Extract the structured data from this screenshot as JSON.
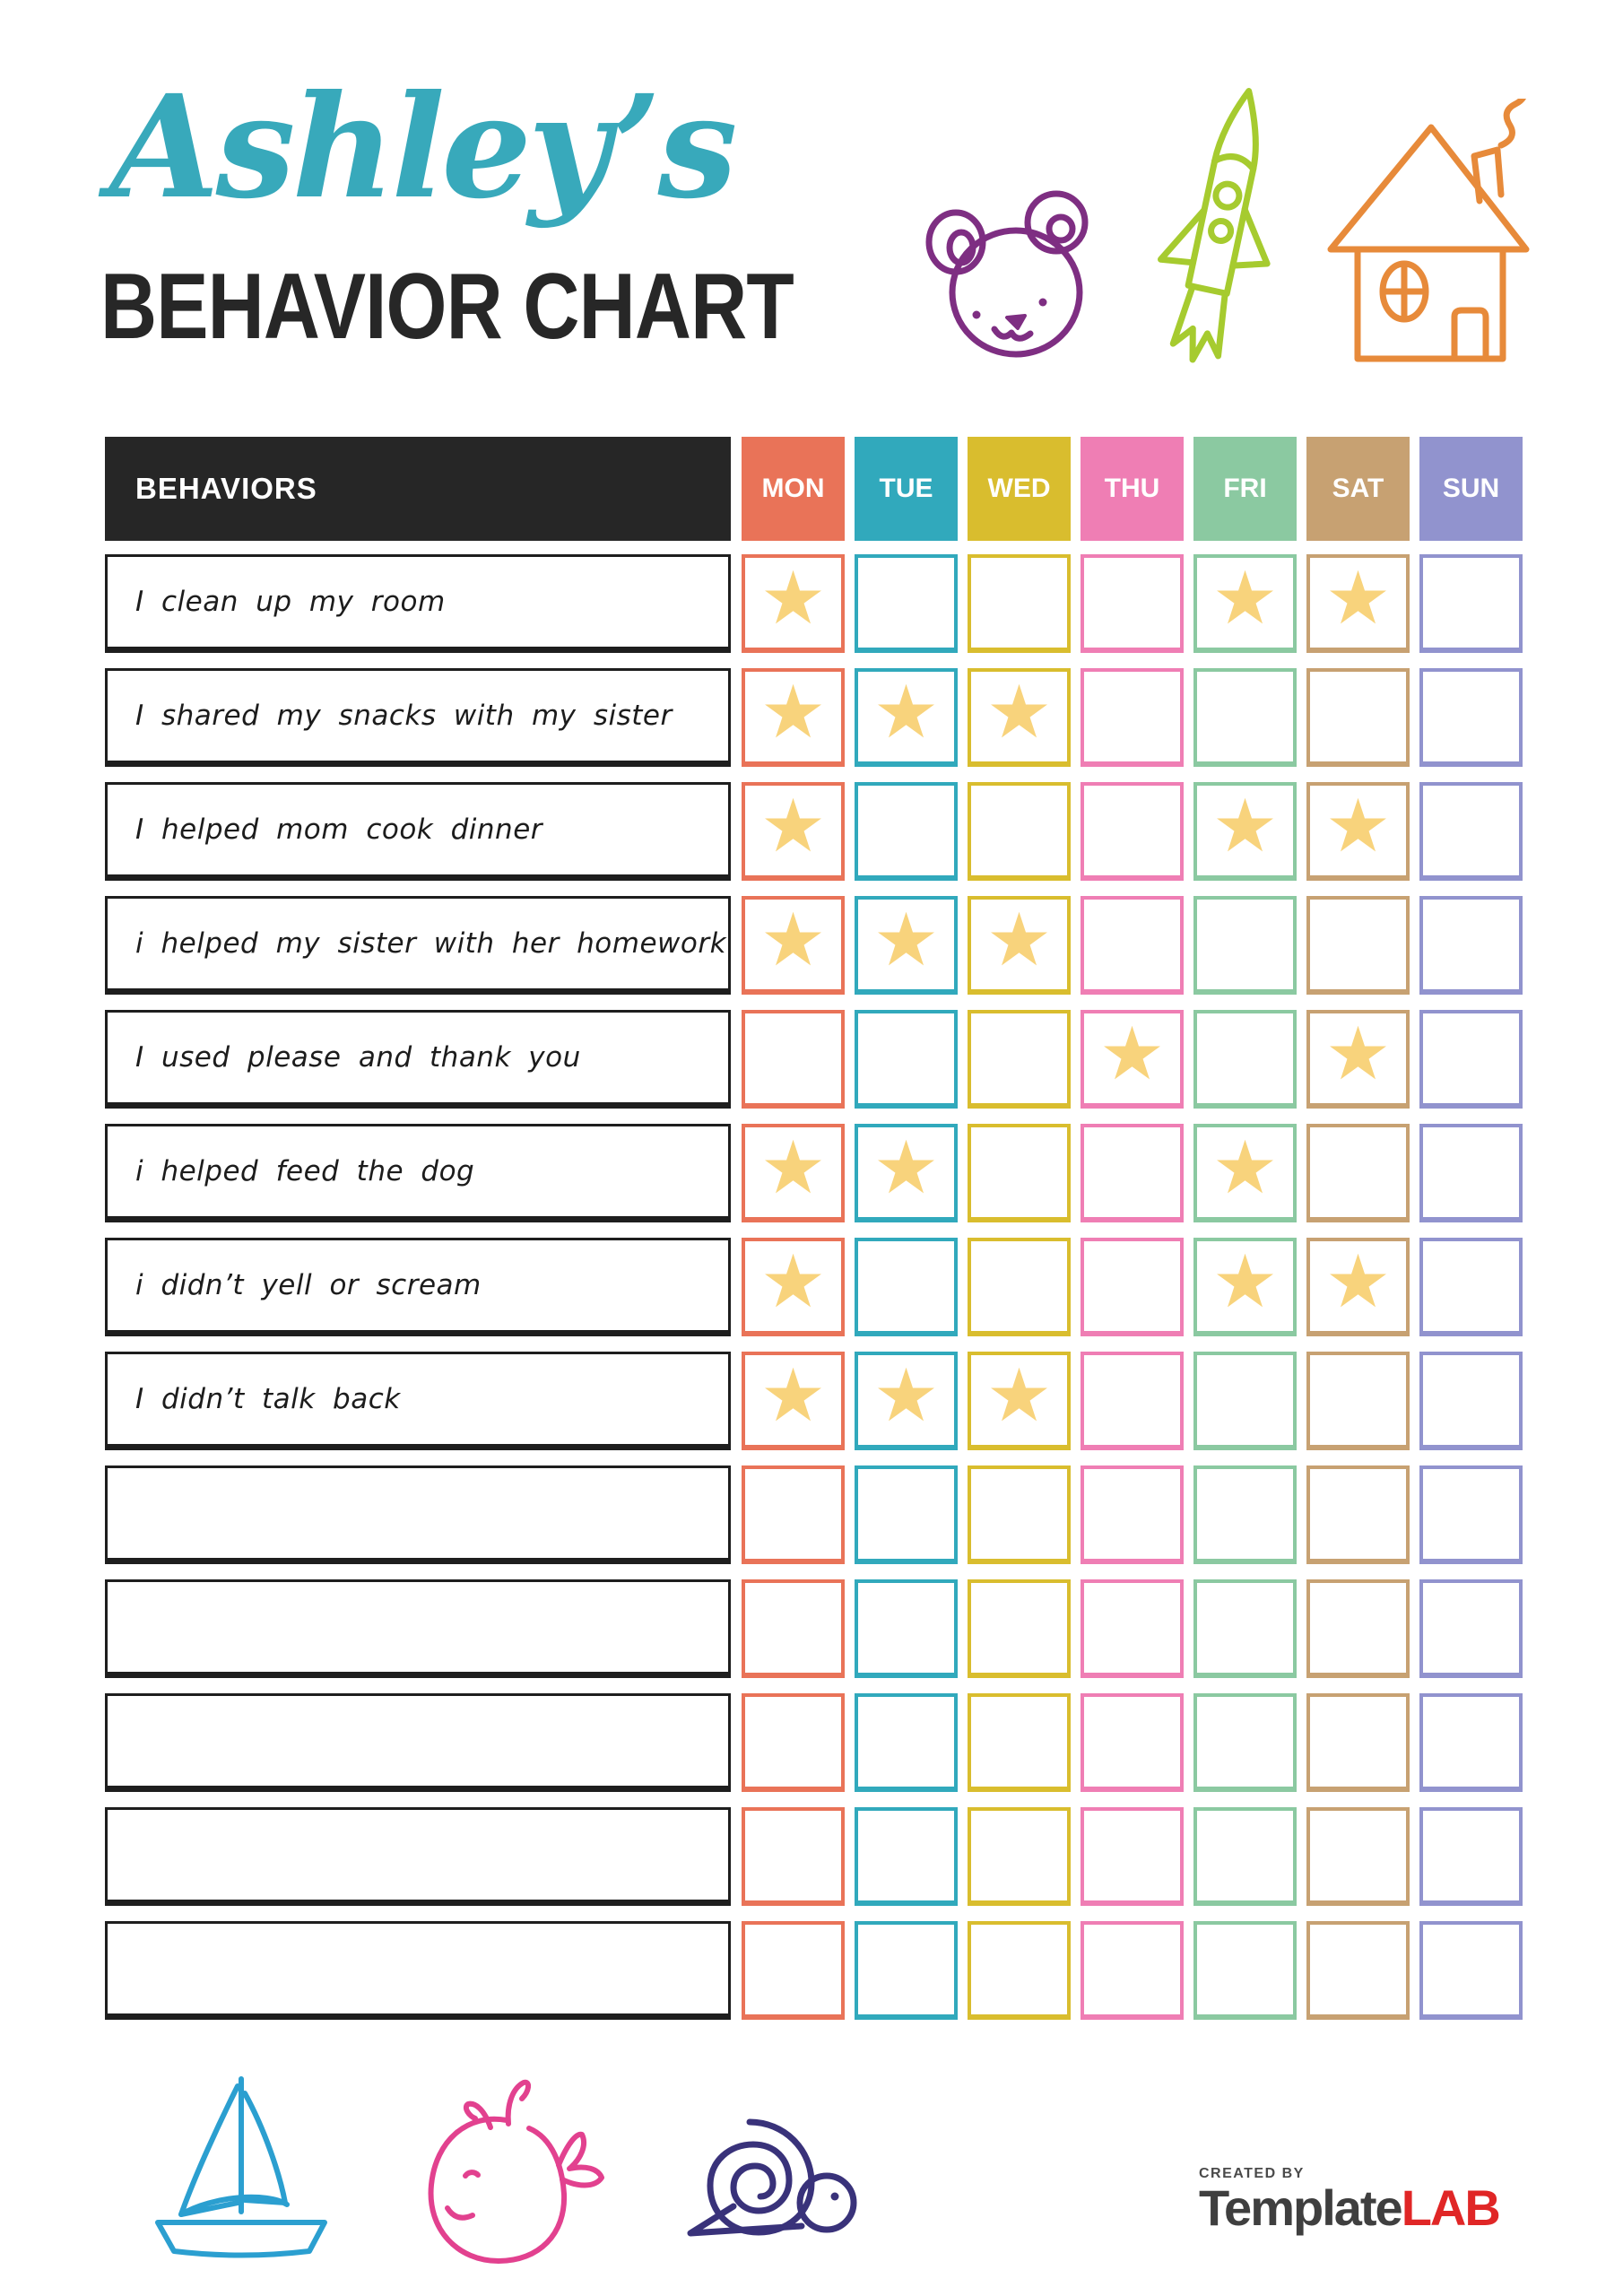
{
  "header": {
    "name": "Ashley’s",
    "title": "BEHAVIOR CHART"
  },
  "colors": {
    "script_title": "#38A9BB",
    "main_title": "#272727",
    "behaviors_header_bg": "#262626",
    "star": "#F8D37C",
    "bear": "#7E2E82",
    "rocket": "#A6CB2F",
    "house": "#E78A3A",
    "sailboat": "#2B9FD0",
    "whale": "#E2418F",
    "snail": "#39327A",
    "logo_created_by": "#4A4A4A",
    "logo_template": "#3F3F3F",
    "logo_lab": "#E02626"
  },
  "table": {
    "behaviors_header": "BEHAVIORS",
    "star_icon": "★",
    "days": [
      {
        "label": "MON",
        "color": "#E97358"
      },
      {
        "label": "TUE",
        "color": "#31A9BC"
      },
      {
        "label": "WED",
        "color": "#D9BD2E"
      },
      {
        "label": "THU",
        "color": "#EF7EB4"
      },
      {
        "label": "FRI",
        "color": "#8BC9A1"
      },
      {
        "label": "SAT",
        "color": "#C7A172"
      },
      {
        "label": "SUN",
        "color": "#9193CE"
      }
    ],
    "rows": [
      {
        "label": "I clean up my room",
        "stars": [
          1,
          0,
          0,
          0,
          1,
          1,
          0
        ]
      },
      {
        "label": "I shared my snacks with my sister",
        "stars": [
          1,
          1,
          1,
          0,
          0,
          0,
          0
        ]
      },
      {
        "label": "I helped mom cook dinner",
        "stars": [
          1,
          0,
          0,
          0,
          1,
          1,
          0
        ]
      },
      {
        "label": "i helped my sister with her homework",
        "stars": [
          1,
          1,
          1,
          0,
          0,
          0,
          0
        ]
      },
      {
        "label": "I used please and thank you",
        "stars": [
          0,
          0,
          0,
          1,
          0,
          1,
          0
        ]
      },
      {
        "label": "i helped feed the dog",
        "stars": [
          1,
          1,
          0,
          0,
          1,
          0,
          0
        ]
      },
      {
        "label": "i didn’t yell or scream",
        "stars": [
          1,
          0,
          0,
          0,
          1,
          1,
          0
        ]
      },
      {
        "label": "I didn’t talk back",
        "stars": [
          1,
          1,
          1,
          0,
          0,
          0,
          0
        ]
      },
      {
        "label": "",
        "stars": [
          0,
          0,
          0,
          0,
          0,
          0,
          0
        ]
      },
      {
        "label": "",
        "stars": [
          0,
          0,
          0,
          0,
          0,
          0,
          0
        ]
      },
      {
        "label": "",
        "stars": [
          0,
          0,
          0,
          0,
          0,
          0,
          0
        ]
      },
      {
        "label": "",
        "stars": [
          0,
          0,
          0,
          0,
          0,
          0,
          0
        ]
      },
      {
        "label": "",
        "stars": [
          0,
          0,
          0,
          0,
          0,
          0,
          0
        ]
      }
    ]
  },
  "footer": {
    "created_by": "CREATED BY",
    "brand_template": "Template",
    "brand_lab": "LAB"
  }
}
